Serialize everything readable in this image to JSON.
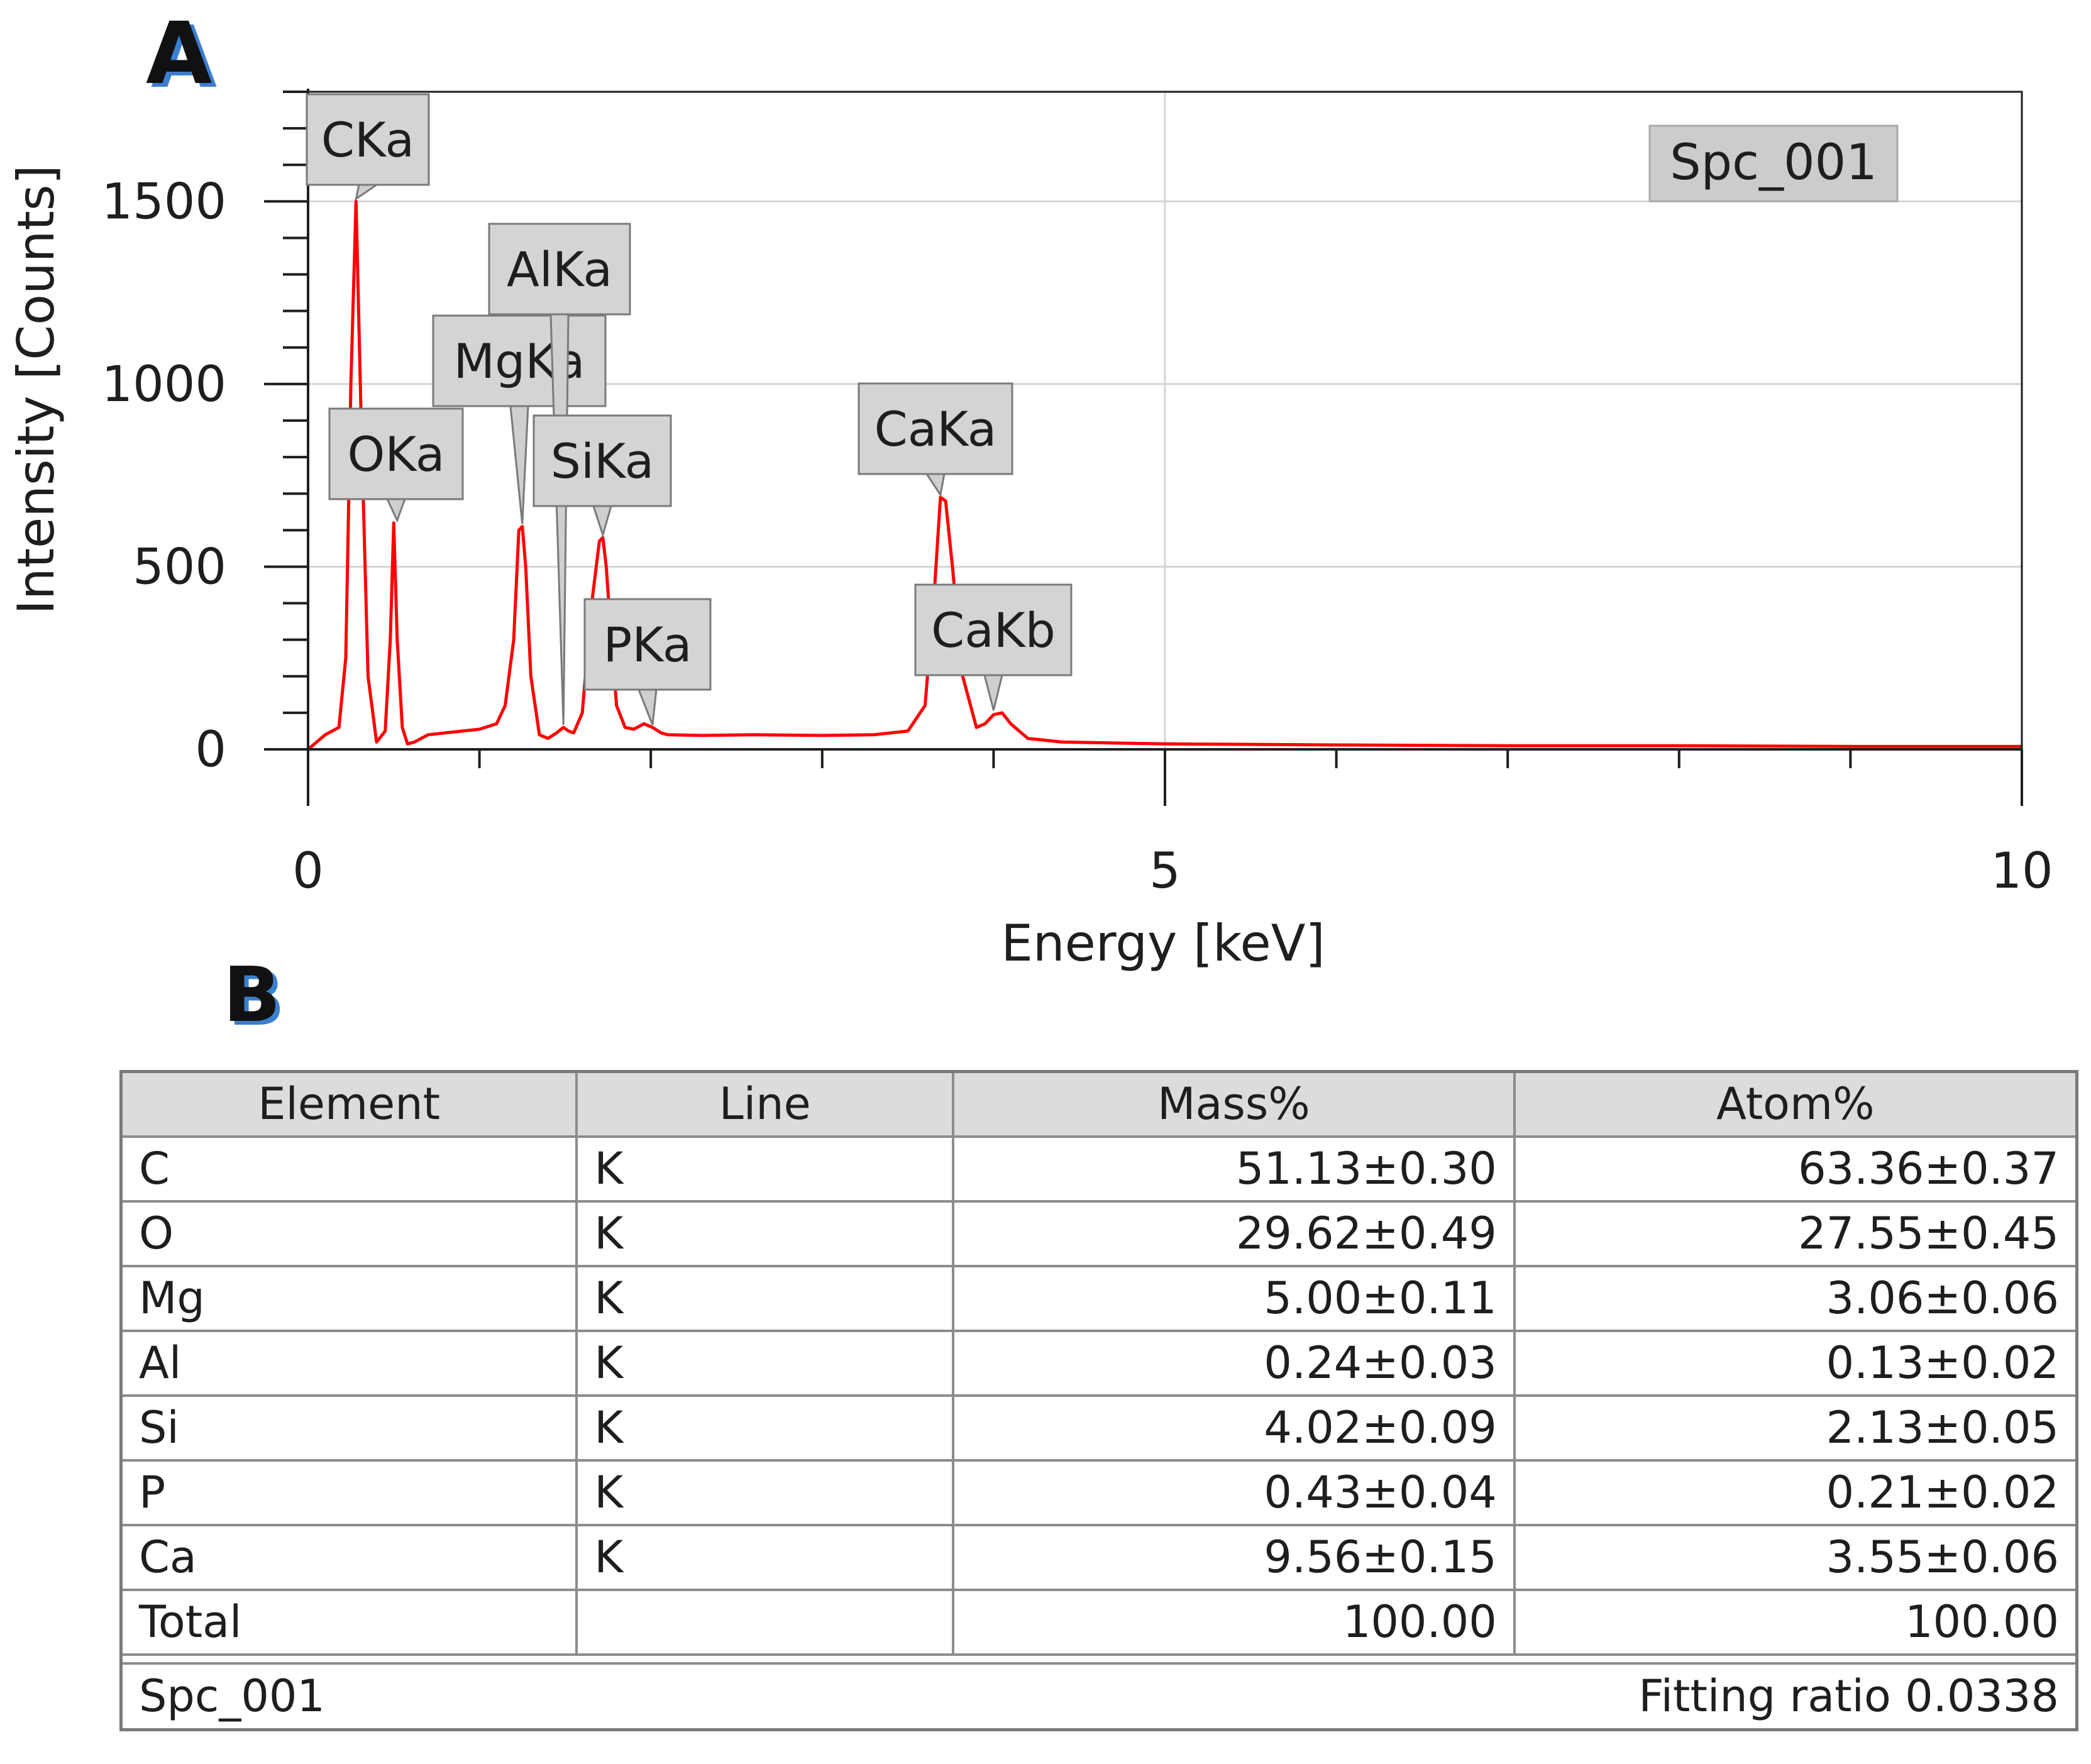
{
  "panels": {
    "a_label": "A",
    "b_label": "B"
  },
  "chart_data": {
    "type": "line",
    "title": "",
    "xlabel": "Energy [keV]",
    "ylabel": "Intensity [Counts]",
    "xlim": [
      0,
      10
    ],
    "ylim": [
      0,
      1800
    ],
    "x_ticks": [
      0,
      5,
      10
    ],
    "y_ticks": [
      0,
      500,
      1000,
      1500
    ],
    "grid": true,
    "legend": "Spc_001",
    "legend_position": "top-right",
    "line_color": "#ff0000",
    "series": [
      {
        "name": "Spc_001",
        "x": [
          0.0,
          0.1,
          0.18,
          0.22,
          0.25,
          0.28,
          0.31,
          0.35,
          0.4,
          0.45,
          0.48,
          0.5,
          0.52,
          0.55,
          0.58,
          0.62,
          0.7,
          0.8,
          0.9,
          1.0,
          1.1,
          1.15,
          1.2,
          1.23,
          1.25,
          1.27,
          1.3,
          1.35,
          1.4,
          1.45,
          1.49,
          1.52,
          1.55,
          1.6,
          1.65,
          1.7,
          1.72,
          1.74,
          1.77,
          1.8,
          1.85,
          1.9,
          1.96,
          2.01,
          2.06,
          2.1,
          2.3,
          2.6,
          3.0,
          3.3,
          3.5,
          3.6,
          3.65,
          3.69,
          3.72,
          3.76,
          3.82,
          3.9,
          3.95,
          4.0,
          4.05,
          4.1,
          4.2,
          4.4,
          5.0,
          6.0,
          7.0,
          8.0,
          9.0,
          10.0
        ],
        "y": [
          0,
          40,
          60,
          250,
          1000,
          1500,
          900,
          200,
          20,
          50,
          300,
          620,
          300,
          60,
          15,
          20,
          40,
          45,
          50,
          55,
          70,
          120,
          300,
          600,
          610,
          500,
          200,
          40,
          30,
          45,
          60,
          50,
          45,
          100,
          380,
          570,
          580,
          500,
          300,
          120,
          60,
          55,
          70,
          60,
          45,
          40,
          38,
          40,
          38,
          40,
          50,
          120,
          400,
          690,
          680,
          500,
          200,
          60,
          70,
          95,
          100,
          70,
          30,
          20,
          15,
          12,
          10,
          10,
          8,
          8
        ]
      }
    ],
    "annotations": [
      {
        "label": "CKa",
        "x": 0.28,
        "y": 1500
      },
      {
        "label": "OKa",
        "x": 0.52,
        "y": 620
      },
      {
        "label": "MgKa",
        "x": 1.25,
        "y": 610
      },
      {
        "label": "AlKa",
        "x": 1.49,
        "y": 60
      },
      {
        "label": "SiKa",
        "x": 1.72,
        "y": 580
      },
      {
        "label": "PKa",
        "x": 2.01,
        "y": 60
      },
      {
        "label": "CaKa",
        "x": 3.69,
        "y": 690
      },
      {
        "label": "CaKb",
        "x": 4.0,
        "y": 100
      }
    ]
  },
  "table": {
    "headers": [
      "Element",
      "Line",
      "Mass%",
      "Atom%"
    ],
    "rows": [
      {
        "element": "C",
        "line": "K",
        "mass": "51.13±0.30",
        "atom": "63.36±0.37"
      },
      {
        "element": "O",
        "line": "K",
        "mass": "29.62±0.49",
        "atom": "27.55±0.45"
      },
      {
        "element": "Mg",
        "line": "K",
        "mass": "5.00±0.11",
        "atom": "3.06±0.06"
      },
      {
        "element": "Al",
        "line": "K",
        "mass": "0.24±0.03",
        "atom": "0.13±0.02"
      },
      {
        "element": "Si",
        "line": "K",
        "mass": "4.02±0.09",
        "atom": "2.13±0.05"
      },
      {
        "element": "P",
        "line": "K",
        "mass": "0.43±0.04",
        "atom": "0.21±0.02"
      },
      {
        "element": "Ca",
        "line": "K",
        "mass": "9.56±0.15",
        "atom": "3.55±0.06"
      },
      {
        "element": "Total",
        "line": "",
        "mass": "100.00",
        "atom": "100.00"
      }
    ],
    "footer_left": "Spc_001",
    "footer_right": "Fitting ratio 0.0338"
  }
}
